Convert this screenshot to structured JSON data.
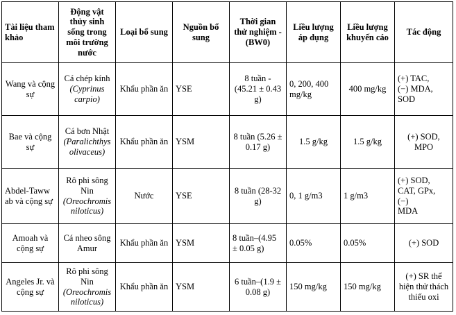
{
  "table": {
    "headers": [
      "Tài liệu tham khảo",
      "Động vật thủy sinh sống trong môi trường nước",
      "Loại bổ sung",
      "Nguồn bổ sung",
      "Thời gian thử nghiệm - (BW0)",
      "Liều lượng áp dụng",
      "Liều lượng khuyến cáo",
      "Tác động"
    ],
    "rows": [
      {
        "ref": "Wang và cộng sự",
        "animal": "Cá chép kính",
        "sci": "(Cyprinus carpio)",
        "type": "Khẩu phần ăn",
        "source": "YSE",
        "duration": "8 tuần - (45.21 ± 0.43 g)",
        "dose": "0, 200, 400 mg/kg",
        "rec": "400 mg/kg",
        "effects": [
          "(+) TAC,",
          "(−) MDA,",
          "SOD"
        ]
      },
      {
        "ref": "Bae và cộng sự",
        "animal": "Cá bơn Nhật",
        "sci": "(Paralichthys olivaceus)",
        "type": "Khẩu phần ăn",
        "source": "YSM",
        "duration": "8 tuần (5.26 ± 0.17 g)",
        "dose": "1.5 g/kg",
        "rec": "1.5 g/kg",
        "effects": [
          "(+) SOD,",
          "MPO"
        ]
      },
      {
        "ref": "Abdel-Taww ab và cộng sự",
        "animal": "Rô phi sông Nin",
        "sci": "(Oreochromis niloticus)",
        "type": "Nước",
        "source": "YSE",
        "duration": "8 tuần (28-32 g)",
        "dose": "0, 1 g/m3",
        "rec": "1 g/m3",
        "effects": [
          "(+) SOD,",
          "CAT, GPx,",
          "(−)",
          "MDA"
        ]
      },
      {
        "ref": "Amoah và cộng sự",
        "animal": "Cá nheo sông Amur",
        "sci": "",
        "type": "Khẩu phần ăn",
        "source": "YSM",
        "duration": "8 tuần–(4.95 ± 0.05 g)",
        "dose": "0.05%",
        "rec": "0.05%",
        "effects": [
          "(+) SOD"
        ]
      },
      {
        "ref": "Angeles Jr. và cộng sự",
        "animal": "Rô phi sông Nin",
        "sci": "(Oreochromis niloticus)",
        "type": "Khẩu phần ăn",
        "source": "YSM",
        "duration": "6 tuần–(1.9 ± 0.08 g)",
        "dose": "150 mg/kg",
        "rec": "150 mg/kg",
        "effects": [
          "(+) SR thể hiện thử thách thiếu oxi"
        ]
      }
    ]
  }
}
